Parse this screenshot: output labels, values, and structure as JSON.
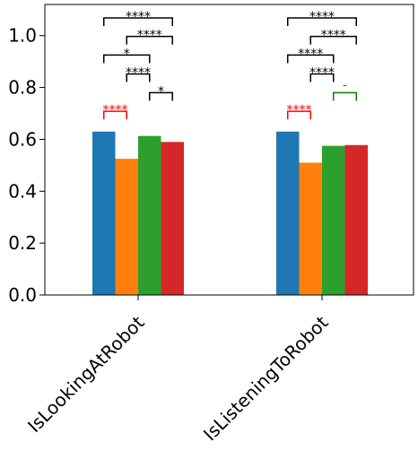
{
  "chart_data": {
    "type": "bar",
    "categories": [
      "IsLookingAtRobot",
      "IsListeningToRobot"
    ],
    "series": [
      {
        "color": "#1f77b4",
        "values": [
          0.63,
          0.63
        ]
      },
      {
        "color": "#ff7f0e",
        "values": [
          0.525,
          0.51
        ]
      },
      {
        "color": "#2ca02c",
        "values": [
          0.613,
          0.575
        ]
      },
      {
        "color": "#d62728",
        "values": [
          0.59,
          0.578
        ]
      }
    ],
    "ylim": [
      0.0,
      1.12
    ],
    "yticks": [
      "0.0",
      "0.2",
      "0.4",
      "0.6",
      "0.8",
      "1.0"
    ],
    "ytick_values": [
      0.0,
      0.2,
      0.4,
      0.6,
      0.8,
      1.0
    ],
    "grid": false,
    "significance": [
      {
        "category": 0,
        "from": 0,
        "to": 3,
        "level": 1.068,
        "label": "****",
        "color": "#000000"
      },
      {
        "category": 0,
        "from": 1,
        "to": 3,
        "level": 0.997,
        "label": "****",
        "color": "#000000"
      },
      {
        "category": 0,
        "from": 0,
        "to": 2,
        "level": 0.925,
        "label": "*",
        "color": "#000000"
      },
      {
        "category": 0,
        "from": 1,
        "to": 2,
        "level": 0.852,
        "label": "****",
        "color": "#000000"
      },
      {
        "category": 0,
        "from": 2,
        "to": 3,
        "level": 0.78,
        "label": "*",
        "color": "#000000"
      },
      {
        "category": 0,
        "from": 0,
        "to": 1,
        "level": 0.708,
        "label": "****",
        "color": "#ff0000"
      },
      {
        "category": 1,
        "from": 0,
        "to": 3,
        "level": 1.068,
        "label": "****",
        "color": "#000000"
      },
      {
        "category": 1,
        "from": 1,
        "to": 3,
        "level": 0.997,
        "label": "****",
        "color": "#000000"
      },
      {
        "category": 1,
        "from": 0,
        "to": 2,
        "level": 0.925,
        "label": "****",
        "color": "#000000"
      },
      {
        "category": 1,
        "from": 1,
        "to": 2,
        "level": 0.852,
        "label": "****",
        "color": "#000000"
      },
      {
        "category": 1,
        "from": 2,
        "to": 3,
        "level": 0.78,
        "label": "-",
        "color": "#008000"
      },
      {
        "category": 1,
        "from": 0,
        "to": 1,
        "level": 0.708,
        "label": "****",
        "color": "#ff0000"
      }
    ]
  }
}
